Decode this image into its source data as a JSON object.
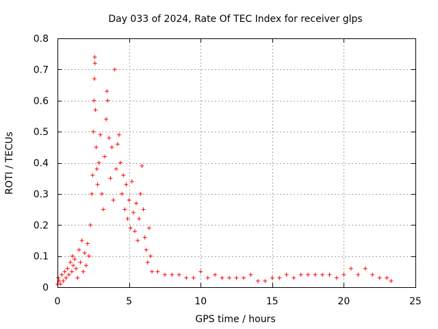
{
  "chart_data": {
    "type": "scatter",
    "title": "Day 033 of 2024, Rate Of TEC Index for receiver glps",
    "xlabel": "GPS time / hours",
    "ylabel": "ROTI / TECUs",
    "xlim": [
      0,
      25
    ],
    "ylim": [
      0,
      0.8
    ],
    "xticks": [
      0,
      5,
      10,
      15,
      20,
      25
    ],
    "yticks": [
      0,
      0.1,
      0.2,
      0.3,
      0.4,
      0.5,
      0.6,
      0.7,
      0.8
    ],
    "xtick_labels": [
      "0",
      "5",
      "10",
      "15",
      "20",
      "25"
    ],
    "ytick_labels": [
      "0",
      "0.1",
      "0.2",
      "0.3",
      "0.4",
      "0.5",
      "0.6",
      "0.7",
      "0.8"
    ],
    "grid": true,
    "marker": "+",
    "color": "#ff0000",
    "series": [
      {
        "name": "ROTI",
        "points": [
          [
            0.0,
            0.01
          ],
          [
            0.05,
            0.03
          ],
          [
            0.1,
            0.02
          ],
          [
            0.2,
            0.01
          ],
          [
            0.3,
            0.04
          ],
          [
            0.4,
            0.02
          ],
          [
            0.5,
            0.05
          ],
          [
            0.6,
            0.03
          ],
          [
            0.7,
            0.06
          ],
          [
            0.8,
            0.04
          ],
          [
            0.9,
            0.08
          ],
          [
            1.0,
            0.05
          ],
          [
            1.05,
            0.1
          ],
          [
            1.1,
            0.07
          ],
          [
            1.2,
            0.09
          ],
          [
            1.3,
            0.06
          ],
          [
            1.4,
            0.03
          ],
          [
            1.5,
            0.12
          ],
          [
            1.6,
            0.08
          ],
          [
            1.7,
            0.15
          ],
          [
            1.8,
            0.05
          ],
          [
            1.9,
            0.11
          ],
          [
            2.0,
            0.07
          ],
          [
            2.1,
            0.14
          ],
          [
            2.2,
            0.1
          ],
          [
            2.3,
            0.2
          ],
          [
            2.4,
            0.3
          ],
          [
            2.45,
            0.36
          ],
          [
            2.5,
            0.5
          ],
          [
            2.55,
            0.6
          ],
          [
            2.58,
            0.67
          ],
          [
            2.6,
            0.74
          ],
          [
            2.62,
            0.72
          ],
          [
            2.65,
            0.57
          ],
          [
            2.7,
            0.45
          ],
          [
            2.75,
            0.38
          ],
          [
            2.8,
            0.33
          ],
          [
            2.9,
            0.4
          ],
          [
            3.0,
            0.49
          ],
          [
            3.1,
            0.3
          ],
          [
            3.2,
            0.25
          ],
          [
            3.3,
            0.42
          ],
          [
            3.4,
            0.54
          ],
          [
            3.45,
            0.63
          ],
          [
            3.5,
            0.6
          ],
          [
            3.6,
            0.48
          ],
          [
            3.7,
            0.35
          ],
          [
            3.8,
            0.45
          ],
          [
            3.9,
            0.28
          ],
          [
            4.0,
            0.7
          ],
          [
            4.1,
            0.38
          ],
          [
            4.2,
            0.46
          ],
          [
            4.3,
            0.49
          ],
          [
            4.4,
            0.4
          ],
          [
            4.5,
            0.3
          ],
          [
            4.6,
            0.36
          ],
          [
            4.7,
            0.25
          ],
          [
            4.8,
            0.33
          ],
          [
            4.9,
            0.22
          ],
          [
            5.0,
            0.28
          ],
          [
            5.1,
            0.19
          ],
          [
            5.2,
            0.34
          ],
          [
            5.3,
            0.24
          ],
          [
            5.4,
            0.18
          ],
          [
            5.5,
            0.27
          ],
          [
            5.6,
            0.15
          ],
          [
            5.7,
            0.22
          ],
          [
            5.8,
            0.3
          ],
          [
            5.9,
            0.39
          ],
          [
            6.0,
            0.25
          ],
          [
            6.1,
            0.16
          ],
          [
            6.2,
            0.12
          ],
          [
            6.3,
            0.08
          ],
          [
            6.4,
            0.19
          ],
          [
            6.5,
            0.1
          ],
          [
            6.6,
            0.05
          ],
          [
            7.0,
            0.05
          ],
          [
            7.5,
            0.04
          ],
          [
            8.0,
            0.04
          ],
          [
            8.5,
            0.04
          ],
          [
            9.0,
            0.03
          ],
          [
            9.5,
            0.03
          ],
          [
            10.0,
            0.05
          ],
          [
            10.5,
            0.03
          ],
          [
            11.0,
            0.04
          ],
          [
            11.5,
            0.03
          ],
          [
            12.0,
            0.03
          ],
          [
            12.5,
            0.03
          ],
          [
            13.0,
            0.03
          ],
          [
            13.5,
            0.04
          ],
          [
            14.0,
            0.02
          ],
          [
            14.5,
            0.02
          ],
          [
            15.0,
            0.03
          ],
          [
            15.5,
            0.03
          ],
          [
            16.0,
            0.04
          ],
          [
            16.5,
            0.03
          ],
          [
            17.0,
            0.04
          ],
          [
            17.5,
            0.04
          ],
          [
            18.0,
            0.04
          ],
          [
            18.5,
            0.04
          ],
          [
            19.0,
            0.04
          ],
          [
            19.5,
            0.03
          ],
          [
            20.0,
            0.04
          ],
          [
            20.5,
            0.06
          ],
          [
            21.0,
            0.04
          ],
          [
            21.5,
            0.06
          ],
          [
            22.0,
            0.04
          ],
          [
            22.5,
            0.03
          ],
          [
            23.0,
            0.03
          ],
          [
            23.3,
            0.02
          ]
        ]
      }
    ]
  }
}
